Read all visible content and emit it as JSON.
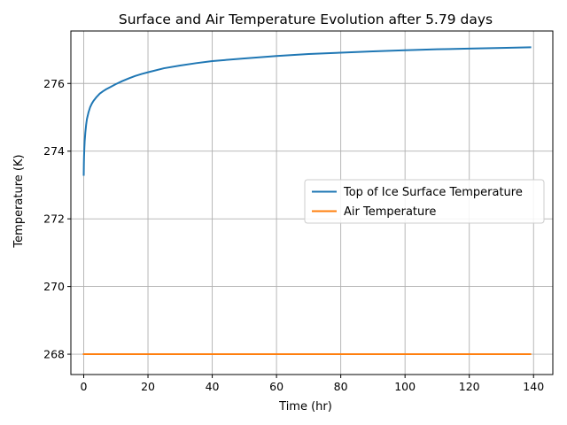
{
  "chart_data": {
    "type": "line",
    "title": "Surface and Air Temperature Evolution after 5.79 days",
    "xlabel": "Time (hr)",
    "ylabel": "Temperature (K)",
    "xlim": [
      -4,
      146
    ],
    "ylim": [
      267.4,
      277.55
    ],
    "xticks": [
      0,
      20,
      40,
      60,
      80,
      100,
      120,
      140
    ],
    "yticks": [
      268,
      270,
      272,
      274,
      276
    ],
    "grid": true,
    "legend_position": "center-right",
    "series": [
      {
        "name": "Top of Ice Surface Temperature",
        "color": "#1f77b4",
        "x": [
          0,
          0.05,
          0.1,
          0.2,
          0.3,
          0.5,
          0.75,
          1,
          1.5,
          2,
          2.5,
          3,
          4,
          5,
          6,
          7,
          8,
          10,
          12,
          14,
          16,
          18,
          20,
          25,
          30,
          35,
          40,
          50,
          60,
          70,
          80,
          90,
          100,
          110,
          120,
          130,
          139
        ],
        "y": [
          273.3,
          273.65,
          273.85,
          274.1,
          274.3,
          274.55,
          274.78,
          274.95,
          275.15,
          275.3,
          275.4,
          275.48,
          275.6,
          275.7,
          275.77,
          275.83,
          275.88,
          275.98,
          276.07,
          276.15,
          276.22,
          276.28,
          276.33,
          276.45,
          276.53,
          276.6,
          276.66,
          276.74,
          276.81,
          276.87,
          276.91,
          276.95,
          276.98,
          277.01,
          277.03,
          277.05,
          277.07
        ]
      },
      {
        "name": "Air Temperature",
        "color": "#ff7f0e",
        "x": [
          0,
          139
        ],
        "y": [
          268,
          268
        ]
      }
    ]
  }
}
